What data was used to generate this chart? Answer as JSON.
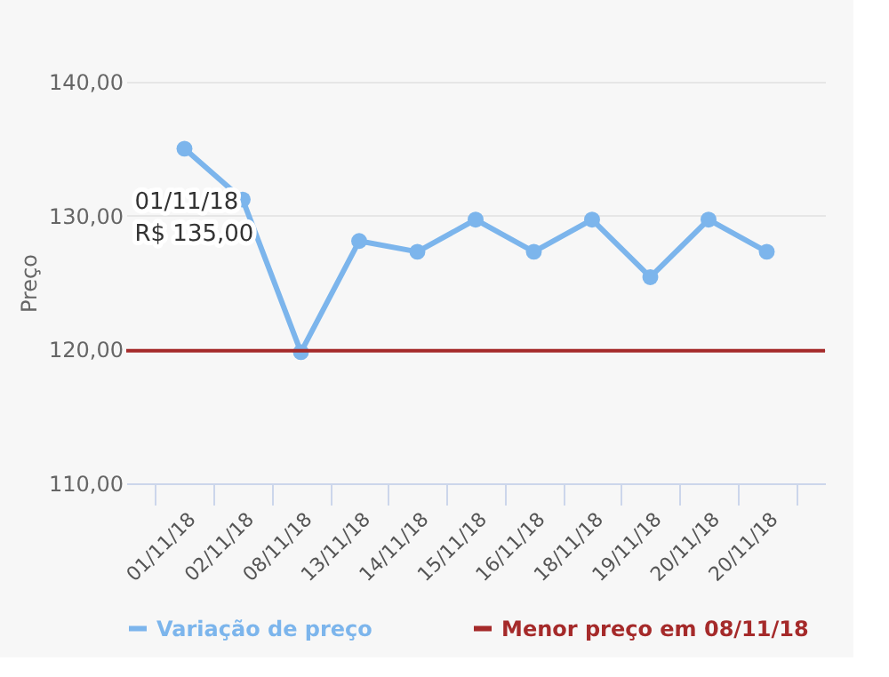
{
  "chart_data": {
    "type": "line",
    "ylabel": "Preço",
    "categories": [
      "01/11/18",
      "02/11/18",
      "08/11/18",
      "13/11/18",
      "14/11/18",
      "15/11/18",
      "16/11/18",
      "18/11/18",
      "19/11/18",
      "20/11/18",
      "20/11/18"
    ],
    "series": [
      {
        "name": "Variação de preço",
        "color": "#7cb5ec",
        "values": [
          135,
          131.2,
          119.8,
          128.1,
          127.3,
          129.7,
          127.3,
          129.7,
          125.4,
          129.7,
          127.3
        ]
      }
    ],
    "ylim": [
      110,
      140
    ],
    "yticks": [
      {
        "value": 110,
        "label": "110,00"
      },
      {
        "value": 120,
        "label": "120,00"
      },
      {
        "value": 130,
        "label": "130,00"
      },
      {
        "value": 140,
        "label": "140,00"
      }
    ],
    "ref_lines": [
      {
        "axis": "y",
        "value": 119.9,
        "label": "Menor preço em 08/11/18",
        "color": "#a52a2a",
        "line_style": "solid"
      }
    ],
    "annotations": [
      {
        "text": "01/11/18\nR$ 135,00",
        "x": "01/11/18",
        "y": 135
      }
    ],
    "grid": "y",
    "legend": "bottom",
    "marker": "circle",
    "line_style": "solid"
  }
}
